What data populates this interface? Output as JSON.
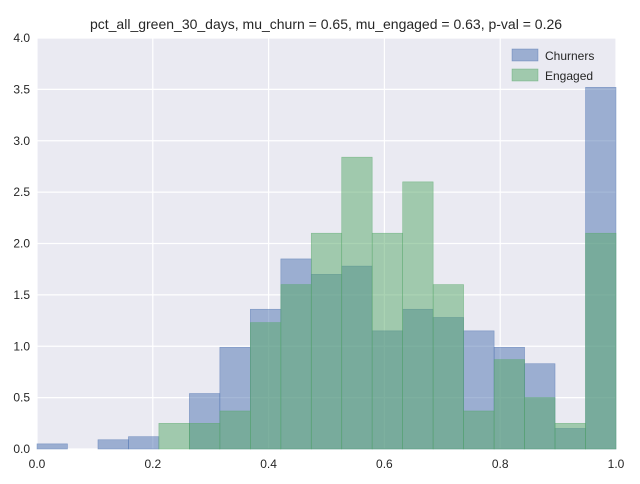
{
  "chart_data": {
    "type": "bar",
    "subtype": "histogram",
    "title": "pct_all_green_30_days, mu_churn = 0.65, mu_engaged = 0.63, p-val = 0.26",
    "xlabel": "",
    "ylabel": "",
    "xlim": [
      0.0,
      1.0
    ],
    "ylim": [
      0.0,
      4.0
    ],
    "xticks": [
      0.0,
      0.2,
      0.4,
      0.6,
      0.8,
      1.0
    ],
    "xtick_labels": [
      "0.0",
      "0.2",
      "0.4",
      "0.6",
      "0.8",
      "1.0"
    ],
    "yticks": [
      0.0,
      0.5,
      1.0,
      1.5,
      2.0,
      2.5,
      3.0,
      3.5,
      4.0
    ],
    "ytick_labels": [
      "0.0",
      "0.5",
      "1.0",
      "1.5",
      "2.0",
      "2.5",
      "3.0",
      "3.5",
      "4.0"
    ],
    "grid": true,
    "legend_position": "top-right",
    "bin_edges": [
      0.0,
      0.0526,
      0.1053,
      0.1579,
      0.2105,
      0.2632,
      0.3158,
      0.3684,
      0.4211,
      0.4737,
      0.5263,
      0.5789,
      0.6316,
      0.6842,
      0.7368,
      0.7895,
      0.8421,
      0.8947,
      0.9474,
      1.0
    ],
    "series": [
      {
        "name": "Churners",
        "color": "#4c72b0",
        "opacity": 0.5,
        "values": [
          0.05,
          0.0,
          0.09,
          0.12,
          0.0,
          0.54,
          0.99,
          1.36,
          1.85,
          1.7,
          1.78,
          1.15,
          1.36,
          1.28,
          1.15,
          0.99,
          0.83,
          0.2,
          3.52
        ]
      },
      {
        "name": "Engaged",
        "color": "#55a868",
        "opacity": 0.5,
        "values": [
          0.0,
          0.0,
          0.0,
          0.0,
          0.25,
          0.25,
          0.37,
          1.23,
          1.6,
          2.1,
          2.84,
          2.1,
          2.6,
          1.6,
          0.37,
          0.87,
          0.5,
          0.25,
          2.1
        ]
      }
    ]
  }
}
